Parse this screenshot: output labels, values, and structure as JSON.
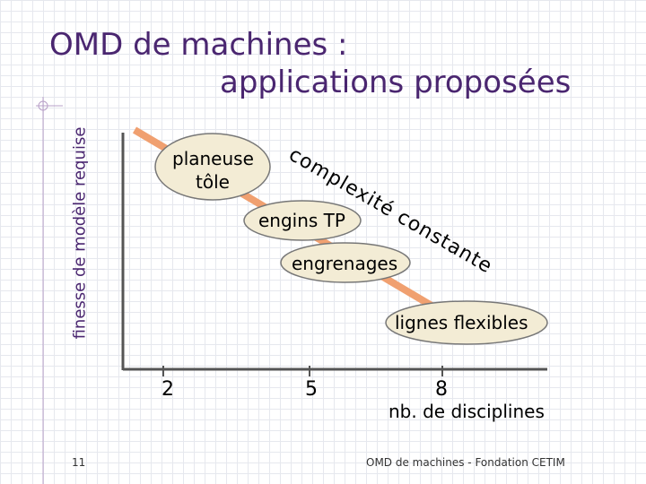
{
  "slide": {
    "title_line1": "OMD de machines :",
    "title_line2": "applications proposées",
    "ylabel": "finesse de modèle requise",
    "xlabel": "nb. de disciplines",
    "x_ticks": [
      "2",
      "5",
      "8"
    ],
    "bubbles": [
      "planeuse tôle",
      "engins TP",
      "engrenages",
      "lignes flexibles"
    ],
    "bubble_lines": {
      "planeuse_1": "planeuse",
      "planeuse_2": "tôle"
    },
    "diagonal_text": "complexité constante",
    "page_number": "11",
    "footer": "OMD de machines - Fondation CETIM"
  },
  "colors": {
    "title": "#4a2670",
    "diagonal": "#f0a070",
    "bubble_fill": "#f3ecd5",
    "axis": "#555555"
  }
}
